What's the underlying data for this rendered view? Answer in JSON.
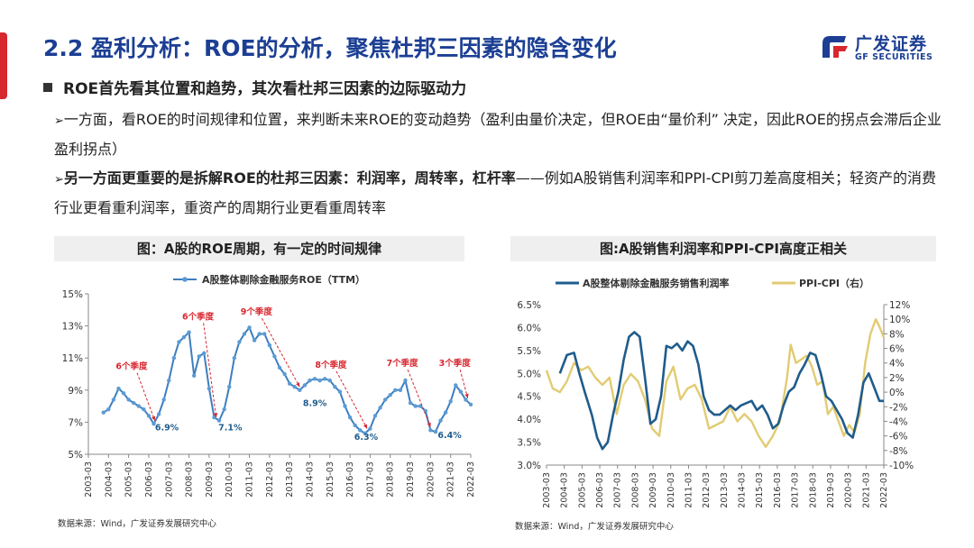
{
  "header": {
    "title": "2.2 盈利分析：ROE的分析，聚焦杜邦三因素的隐含变化",
    "logo_cn": "广发证券",
    "logo_en": "GF SECURITIES"
  },
  "bullets": {
    "main": "ROE首先看其位置和趋势，其次看杜邦三因素的边际驱动力",
    "arrow_glyph": "➢",
    "para1": "一方面，看ROE的时间规律和位置，来判断未来ROE的变动趋势（盈利由量价决定，但ROE由“量价利” 决定，因此ROE的拐点会滞后企业盈利拐点）",
    "para2_bold": "另一方面更重要的是拆解ROE的杜邦三因素：利润率，周转率，杠杆率",
    "para2_rest": "——例如A股销售利润率和PPI-CPI剪刀差高度相关；轻资产的消费行业更看重利润率，重资产的周期行业更看重周转率"
  },
  "colors": {
    "title_blue": "#1c3f94",
    "roe_line": "#3d7ebf",
    "roe_marker": "#5b9bd5",
    "margin_line": "#1f5c8c",
    "ppi_line": "#e2cb72",
    "annotation_red": "#d7272f",
    "header_bg": "#efefef"
  },
  "source_left": "数据来源：Wind，广发证券发展研究中心",
  "source_right": "数据来源：Wind，广发证券发展研究中心",
  "chart_data": [
    {
      "type": "line",
      "title": "图：A股的ROE周期，有一定的时间规律",
      "legend": [
        "A股整体剔除金融服务ROE（TTM）"
      ],
      "legend_position": "top",
      "ylim": [
        5,
        15
      ],
      "yticks": [
        "5%",
        "7%",
        "9%",
        "11%",
        "13%",
        "15%"
      ],
      "xticks": [
        "2003-03",
        "2004-03",
        "2005-03",
        "2006-03",
        "2007-03",
        "2008-03",
        "2009-03",
        "2010-03",
        "2011-03",
        "2012-03",
        "2013-03",
        "2014-03",
        "2015-03",
        "2016-03",
        "2017-03",
        "2018-03",
        "2019-03",
        "2020-03",
        "2021-03",
        "2022-03"
      ],
      "x_start": 2003.25,
      "x_end": 2022.25,
      "series": [
        {
          "name": "A股整体剔除金融服务ROE（TTM）",
          "x": [
            2004.0,
            2004.25,
            2004.5,
            2004.75,
            2005.0,
            2005.25,
            2005.5,
            2005.75,
            2006.0,
            2006.25,
            2006.5,
            2006.75,
            2007.0,
            2007.25,
            2007.5,
            2007.75,
            2008.0,
            2008.25,
            2008.5,
            2008.75,
            2009.0,
            2009.25,
            2009.5,
            2009.75,
            2010.0,
            2010.25,
            2010.5,
            2010.75,
            2011.0,
            2011.25,
            2011.5,
            2011.75,
            2012.0,
            2012.25,
            2012.5,
            2012.75,
            2013.0,
            2013.25,
            2013.5,
            2013.75,
            2014.0,
            2014.25,
            2014.5,
            2014.75,
            2015.0,
            2015.25,
            2015.5,
            2015.75,
            2016.0,
            2016.25,
            2016.5,
            2016.75,
            2017.0,
            2017.25,
            2017.5,
            2017.75,
            2018.0,
            2018.25,
            2018.5,
            2018.75,
            2019.0,
            2019.25,
            2019.5,
            2019.75,
            2020.0,
            2020.25,
            2020.5,
            2020.75,
            2021.0,
            2021.25,
            2021.5,
            2021.75,
            2022.0,
            2022.25
          ],
          "y": [
            7.6,
            7.8,
            8.4,
            9.1,
            8.8,
            8.4,
            8.2,
            8.0,
            7.8,
            7.4,
            6.9,
            7.5,
            8.4,
            9.6,
            11.0,
            12.0,
            12.3,
            12.6,
            9.9,
            11.1,
            11.3,
            9.1,
            7.3,
            7.1,
            7.8,
            9.2,
            11.0,
            12.0,
            12.5,
            12.9,
            12.1,
            12.5,
            12.5,
            11.8,
            11.1,
            10.4,
            10.0,
            9.4,
            9.2,
            9.0,
            9.3,
            9.6,
            9.7,
            9.6,
            9.7,
            9.6,
            9.2,
            8.9,
            8.0,
            7.3,
            6.8,
            6.5,
            6.3,
            6.6,
            7.4,
            7.9,
            8.4,
            8.7,
            9.0,
            9.0,
            9.6,
            8.2,
            8.0,
            8.0,
            7.7,
            6.5,
            6.4,
            7.1,
            7.6,
            8.3,
            9.3,
            8.9,
            8.4,
            8.1
          ]
        }
      ],
      "annotations": [
        {
          "text": "6个季度",
          "x": 2005.4,
          "y": 10.3
        },
        {
          "text": "6个季度",
          "x": 2008.7,
          "y": 13.4
        },
        {
          "text": "9个季度",
          "x": 2011.6,
          "y": 13.7
        },
        {
          "text": "8个季度",
          "x": 2015.3,
          "y": 10.4
        },
        {
          "text": "7个季度",
          "x": 2018.85,
          "y": 10.5
        },
        {
          "text": "3个季度",
          "x": 2021.45,
          "y": 10.5
        }
      ],
      "value_labels": [
        {
          "text": "6.9%",
          "x": 2007.15,
          "y": 6.5
        },
        {
          "text": "7.1%",
          "x": 2010.3,
          "y": 6.5
        },
        {
          "text": "8.9%",
          "x": 2014.5,
          "y": 8.0
        },
        {
          "text": "6.3%",
          "x": 2017.05,
          "y": 5.9
        },
        {
          "text": "6.4%",
          "x": 2021.2,
          "y": 6.0
        }
      ]
    },
    {
      "type": "line",
      "title": "图:A股销售利润率和PPI-CPI高度正相关",
      "legend": [
        "A股整体剔除金融服务销售利润率",
        "PPI-CPI（右）"
      ],
      "legend_position": "top",
      "ylim": [
        3.0,
        6.5
      ],
      "y2lim": [
        -10,
        12
      ],
      "yticks": [
        "3.0%",
        "3.5%",
        "4.0%",
        "4.5%",
        "5.0%",
        "5.5%",
        "6.0%",
        "6.5%"
      ],
      "y2ticks": [
        "-10%",
        "-8%",
        "-6%",
        "-4%",
        "-2%",
        "0%",
        "2%",
        "4%",
        "6%",
        "8%",
        "10%",
        "12%"
      ],
      "xticks": [
        "2003-03",
        "2004-03",
        "2005-03",
        "2006-03",
        "2007-03",
        "2008-03",
        "2009-03",
        "2010-03",
        "2011-03",
        "2012-03",
        "2013-03",
        "2014-03",
        "2015-03",
        "2016-03",
        "2017-03",
        "2018-03",
        "2019-03",
        "2020-03",
        "2021-03",
        "2022-03"
      ],
      "x_start": 2003.25,
      "x_end": 2022.25,
      "series": [
        {
          "name": "A股整体剔除金融服务销售利润率",
          "axis": "left",
          "x": [
            2004.0,
            2004.4,
            2004.8,
            2005.1,
            2005.4,
            2005.8,
            2006.1,
            2006.4,
            2006.7,
            2007.0,
            2007.3,
            2007.6,
            2007.9,
            2008.2,
            2008.5,
            2008.8,
            2009.1,
            2009.4,
            2009.7,
            2010.0,
            2010.3,
            2010.6,
            2010.9,
            2011.2,
            2011.5,
            2011.8,
            2012.1,
            2012.4,
            2012.7,
            2013.0,
            2013.3,
            2013.6,
            2013.9,
            2014.2,
            2014.5,
            2014.8,
            2015.1,
            2015.4,
            2015.7,
            2016.0,
            2016.3,
            2016.6,
            2016.9,
            2017.2,
            2017.5,
            2017.8,
            2018.1,
            2018.4,
            2018.7,
            2019.0,
            2019.3,
            2019.6,
            2019.9,
            2020.2,
            2020.5,
            2020.8,
            2021.1,
            2021.4,
            2021.7,
            2022.0,
            2022.25
          ],
          "y": [
            5.0,
            5.4,
            5.45,
            5.0,
            4.6,
            4.1,
            3.6,
            3.35,
            3.5,
            4.1,
            4.6,
            5.3,
            5.8,
            5.9,
            5.8,
            4.9,
            3.9,
            4.0,
            4.5,
            5.6,
            5.55,
            5.65,
            5.5,
            5.7,
            5.6,
            5.2,
            4.5,
            4.2,
            4.1,
            4.1,
            4.2,
            4.3,
            4.2,
            4.3,
            4.35,
            4.4,
            4.2,
            4.3,
            4.1,
            3.8,
            3.9,
            4.3,
            4.6,
            4.7,
            5.0,
            5.2,
            5.45,
            5.4,
            5.0,
            4.5,
            4.4,
            4.2,
            4.0,
            3.7,
            3.6,
            4.1,
            4.8,
            5.0,
            4.7,
            4.4,
            4.4
          ]
        },
        {
          "name": "PPI-CPI（右）",
          "axis": "right",
          "x": [
            2003.25,
            2003.6,
            2004.0,
            2004.4,
            2004.8,
            2005.2,
            2005.6,
            2006.0,
            2006.4,
            2006.8,
            2007.2,
            2007.6,
            2008.0,
            2008.4,
            2008.8,
            2009.2,
            2009.6,
            2010.0,
            2010.4,
            2010.8,
            2011.2,
            2011.6,
            2012.0,
            2012.4,
            2012.8,
            2013.2,
            2013.6,
            2014.0,
            2014.4,
            2014.8,
            2015.2,
            2015.6,
            2016.0,
            2016.4,
            2016.8,
            2017.0,
            2017.3,
            2017.6,
            2017.9,
            2018.2,
            2018.5,
            2018.8,
            2019.1,
            2019.4,
            2019.7,
            2020.0,
            2020.3,
            2020.6,
            2020.9,
            2021.2,
            2021.5,
            2021.8,
            2022.0,
            2022.25
          ],
          "y": [
            3.0,
            0.5,
            0.0,
            1.5,
            4.0,
            3.0,
            3.5,
            2.0,
            1.0,
            2.0,
            -3.0,
            1.0,
            2.5,
            1.5,
            -1.0,
            -5.0,
            -6.0,
            1.5,
            3.5,
            -1.0,
            0.5,
            1.0,
            -1.0,
            -5.0,
            -4.5,
            -4.0,
            -2.0,
            -4.0,
            -3.0,
            -4.0,
            -6.0,
            -7.5,
            -6.0,
            -4.0,
            2.0,
            6.5,
            4.0,
            4.5,
            5.0,
            3.5,
            1.0,
            1.5,
            -3.0,
            -2.0,
            -4.0,
            -6.0,
            -4.5,
            -5.5,
            -3.0,
            4.0,
            8.0,
            10.0,
            9.0,
            7.5
          ]
        }
      ]
    }
  ]
}
